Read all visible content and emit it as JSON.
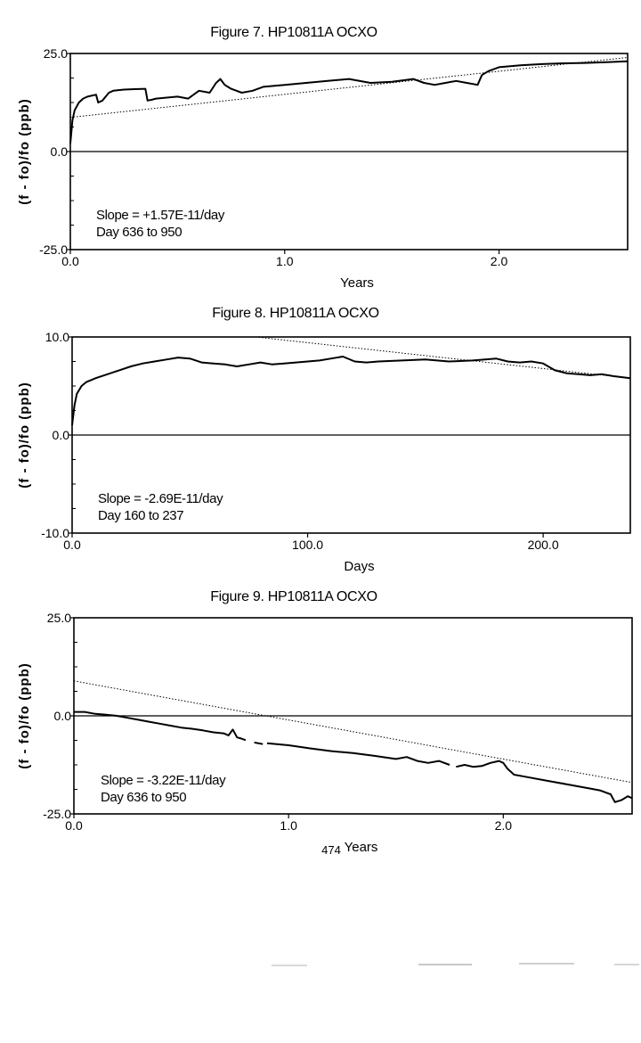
{
  "page_number": "474",
  "chart_data": [
    {
      "type": "line",
      "title": "Figure 7.  HP10811A OCXO",
      "xlabel": "Years",
      "ylabel": "(f - fo)/fo (ppb)",
      "xlim": [
        0,
        2.6
      ],
      "ylim": [
        -25,
        25
      ],
      "x_ticks": [
        "0.0",
        "1.0",
        "2.0"
      ],
      "y_ticks": [
        "25.0",
        "0.0",
        "-25.0"
      ],
      "annotation": [
        "Slope =  +1.57E-11/day",
        "Day 636 to 950"
      ],
      "grid": false,
      "zero_line": true,
      "series": [
        {
          "style": "solid",
          "x": [
            0.0,
            0.01,
            0.02,
            0.04,
            0.06,
            0.08,
            0.12,
            0.13,
            0.15,
            0.18,
            0.2,
            0.25,
            0.3,
            0.35,
            0.36,
            0.38,
            0.4,
            0.5,
            0.55,
            0.6,
            0.65,
            0.68,
            0.7,
            0.72,
            0.75,
            0.8,
            0.85,
            0.9,
            1.0,
            1.1,
            1.2,
            1.3,
            1.4,
            1.5,
            1.6,
            1.65,
            1.7,
            1.75,
            1.8,
            1.85,
            1.9,
            1.92,
            1.95,
            2.0,
            2.1,
            2.2,
            2.3,
            2.4,
            2.5,
            2.6
          ],
          "y": [
            2.0,
            8.0,
            10.5,
            12.5,
            13.5,
            14.0,
            14.5,
            12.5,
            13.0,
            15.0,
            15.5,
            15.8,
            15.9,
            16.0,
            13.0,
            13.2,
            13.5,
            14.0,
            13.5,
            15.5,
            15.0,
            17.5,
            18.5,
            17.0,
            16.0,
            15.0,
            15.5,
            16.5,
            17.0,
            17.5,
            18.0,
            18.5,
            17.5,
            17.8,
            18.5,
            17.5,
            17.0,
            17.5,
            18.0,
            17.5,
            17.0,
            19.5,
            20.5,
            21.5,
            22.0,
            22.3,
            22.5,
            22.6,
            22.8,
            23.0
          ]
        },
        {
          "style": "dotted",
          "x": [
            0.0,
            2.6
          ],
          "y": [
            8.7,
            24.0
          ]
        }
      ]
    },
    {
      "type": "line",
      "title": "Figure 8.   HP10811A OCXO",
      "xlabel": "Days",
      "ylabel": "(f - fo)/fo (ppb)",
      "xlim": [
        0,
        237
      ],
      "ylim": [
        -10,
        10
      ],
      "x_ticks": [
        "0.0",
        "100.0",
        "200.0"
      ],
      "y_ticks": [
        "10.0",
        "0.0",
        "-10.0"
      ],
      "annotation": [
        "Slope =  -2.69E-11/day",
        "Day 160 to 237"
      ],
      "grid": false,
      "zero_line": true,
      "series": [
        {
          "style": "solid",
          "x": [
            0,
            1,
            2,
            4,
            6,
            8,
            10,
            15,
            20,
            25,
            30,
            35,
            40,
            45,
            50,
            55,
            60,
            65,
            70,
            75,
            80,
            85,
            90,
            95,
            100,
            105,
            110,
            115,
            120,
            125,
            130,
            140,
            150,
            160,
            170,
            180,
            185,
            190,
            195,
            200,
            205,
            210,
            215,
            220,
            225,
            230,
            237
          ],
          "y": [
            1.0,
            3.0,
            4.2,
            5.0,
            5.4,
            5.6,
            5.8,
            6.2,
            6.6,
            7.0,
            7.3,
            7.5,
            7.7,
            7.9,
            7.8,
            7.4,
            7.3,
            7.2,
            7.0,
            7.2,
            7.4,
            7.2,
            7.3,
            7.4,
            7.5,
            7.6,
            7.8,
            8.0,
            7.5,
            7.4,
            7.5,
            7.6,
            7.7,
            7.5,
            7.6,
            7.8,
            7.5,
            7.4,
            7.5,
            7.3,
            6.6,
            6.3,
            6.2,
            6.1,
            6.2,
            6.0,
            5.8
          ]
        },
        {
          "style": "dotted",
          "x": [
            78,
            237
          ],
          "y": [
            10.0,
            5.8
          ]
        }
      ]
    },
    {
      "type": "line",
      "title": "Figure 9.  HP10811A OCXO",
      "xlabel": "Years",
      "ylabel": "(f - fo)/fo (ppb)",
      "xlim": [
        0,
        2.6
      ],
      "ylim": [
        -25,
        25
      ],
      "x_ticks": [
        "0.0",
        "1.0",
        "2.0"
      ],
      "y_ticks": [
        "25.0",
        "0.0",
        "-25.0"
      ],
      "annotation": [
        "Slope =  -3.22E-11/day",
        "Day 636 to 950"
      ],
      "grid": false,
      "zero_line": true,
      "series": [
        {
          "style": "solid",
          "x": [
            0.0,
            0.05,
            0.1,
            0.15,
            0.2,
            0.25,
            0.3,
            0.35,
            0.4,
            0.45,
            0.5,
            0.55,
            0.6,
            0.65,
            0.7,
            0.72,
            0.74,
            0.76,
            0.78,
            0.8
          ],
          "y": [
            1.0,
            1.0,
            0.5,
            0.3,
            0.0,
            -0.5,
            -1.0,
            -1.5,
            -2.0,
            -2.5,
            -3.0,
            -3.3,
            -3.7,
            -4.2,
            -4.5,
            -5.0,
            -3.5,
            -5.5,
            -5.8,
            -6.2
          ]
        },
        {
          "style": "solid",
          "x": [
            0.84,
            0.86,
            0.88
          ],
          "y": [
            -6.8,
            -7.0,
            -7.2
          ]
        },
        {
          "style": "solid",
          "x": [
            0.9,
            1.0,
            1.1,
            1.2,
            1.3,
            1.4,
            1.5,
            1.55,
            1.6,
            1.65,
            1.7,
            1.75
          ],
          "y": [
            -7.0,
            -7.5,
            -8.3,
            -9.0,
            -9.5,
            -10.2,
            -11.0,
            -10.5,
            -11.5,
            -12.0,
            -11.5,
            -12.5
          ]
        },
        {
          "style": "solid",
          "x": [
            1.78,
            1.82,
            1.86,
            1.9,
            1.94,
            1.98,
            2.0,
            2.02,
            2.05,
            2.1,
            2.2,
            2.3,
            2.4,
            2.45,
            2.5,
            2.52,
            2.55,
            2.58,
            2.6
          ],
          "y": [
            -13.0,
            -12.5,
            -13.0,
            -12.8,
            -12.0,
            -11.5,
            -12.0,
            -13.5,
            -15.0,
            -15.5,
            -16.5,
            -17.5,
            -18.5,
            -19.0,
            -20.0,
            -22.0,
            -21.5,
            -20.5,
            -21.0
          ]
        },
        {
          "style": "dotted",
          "x": [
            0.0,
            2.6
          ],
          "y": [
            8.9,
            -17.0
          ]
        }
      ]
    }
  ]
}
